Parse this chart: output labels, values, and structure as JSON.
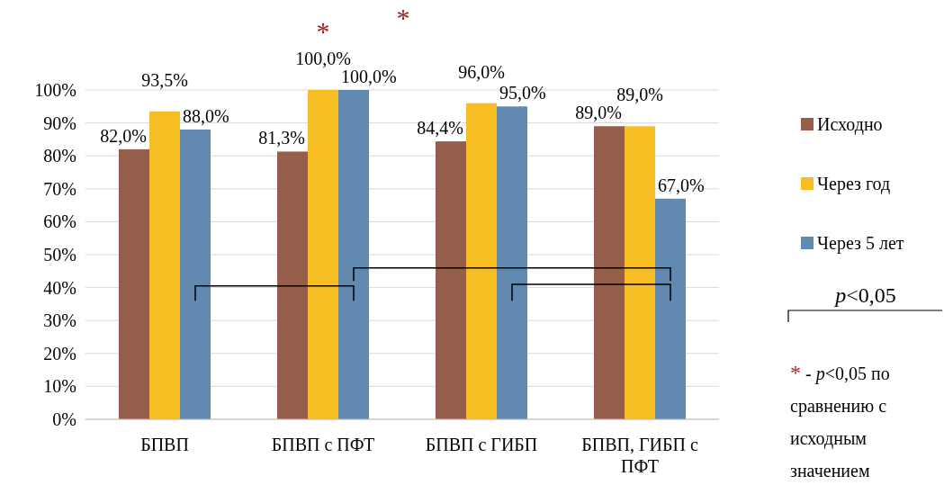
{
  "chart_data": {
    "type": "bar",
    "categories": [
      "БПВП",
      "БПВП с ПФТ",
      "БПВП с ГИБП",
      "БПВП, ГИБП с ПФТ"
    ],
    "series": [
      {
        "name": "Исходно",
        "color": "#955f4b",
        "values": [
          82.0,
          81.3,
          84.4,
          89.0
        ],
        "value_labels": [
          "82,0%",
          "81,3%",
          "84,4%",
          "89,0%"
        ]
      },
      {
        "name": "Через год",
        "color": "#f6be22",
        "values": [
          93.5,
          100.0,
          96.0,
          89.0
        ],
        "value_labels": [
          "93,5%",
          "100,0%",
          "96,0%",
          "89,0%"
        ]
      },
      {
        "name": "Через 5 лет",
        "color": "#628ab0",
        "values": [
          88.0,
          100.0,
          95.0,
          67.0
        ],
        "value_labels": [
          "88,0%",
          "100,0%",
          "95,0%",
          "67,0%"
        ]
      }
    ],
    "ylim": [
      0,
      100
    ],
    "yticks": [
      {
        "value": 0,
        "label": "0%"
      },
      {
        "value": 10,
        "label": "10%"
      },
      {
        "value": 20,
        "label": "20%"
      },
      {
        "value": 30,
        "label": "30%"
      },
      {
        "value": 40,
        "label": "40%"
      },
      {
        "value": 50,
        "label": "50%"
      },
      {
        "value": 60,
        "label": "60%"
      },
      {
        "value": 70,
        "label": "70%"
      },
      {
        "value": 80,
        "label": "80%"
      },
      {
        "value": 90,
        "label": "90%"
      },
      {
        "value": 100,
        "label": "100%"
      }
    ],
    "grid": "y",
    "legend": "right",
    "annotations": [
      "*",
      "*",
      "p<0,05",
      "* - p<0,05 по сравнению с исходным значением"
    ]
  }
}
